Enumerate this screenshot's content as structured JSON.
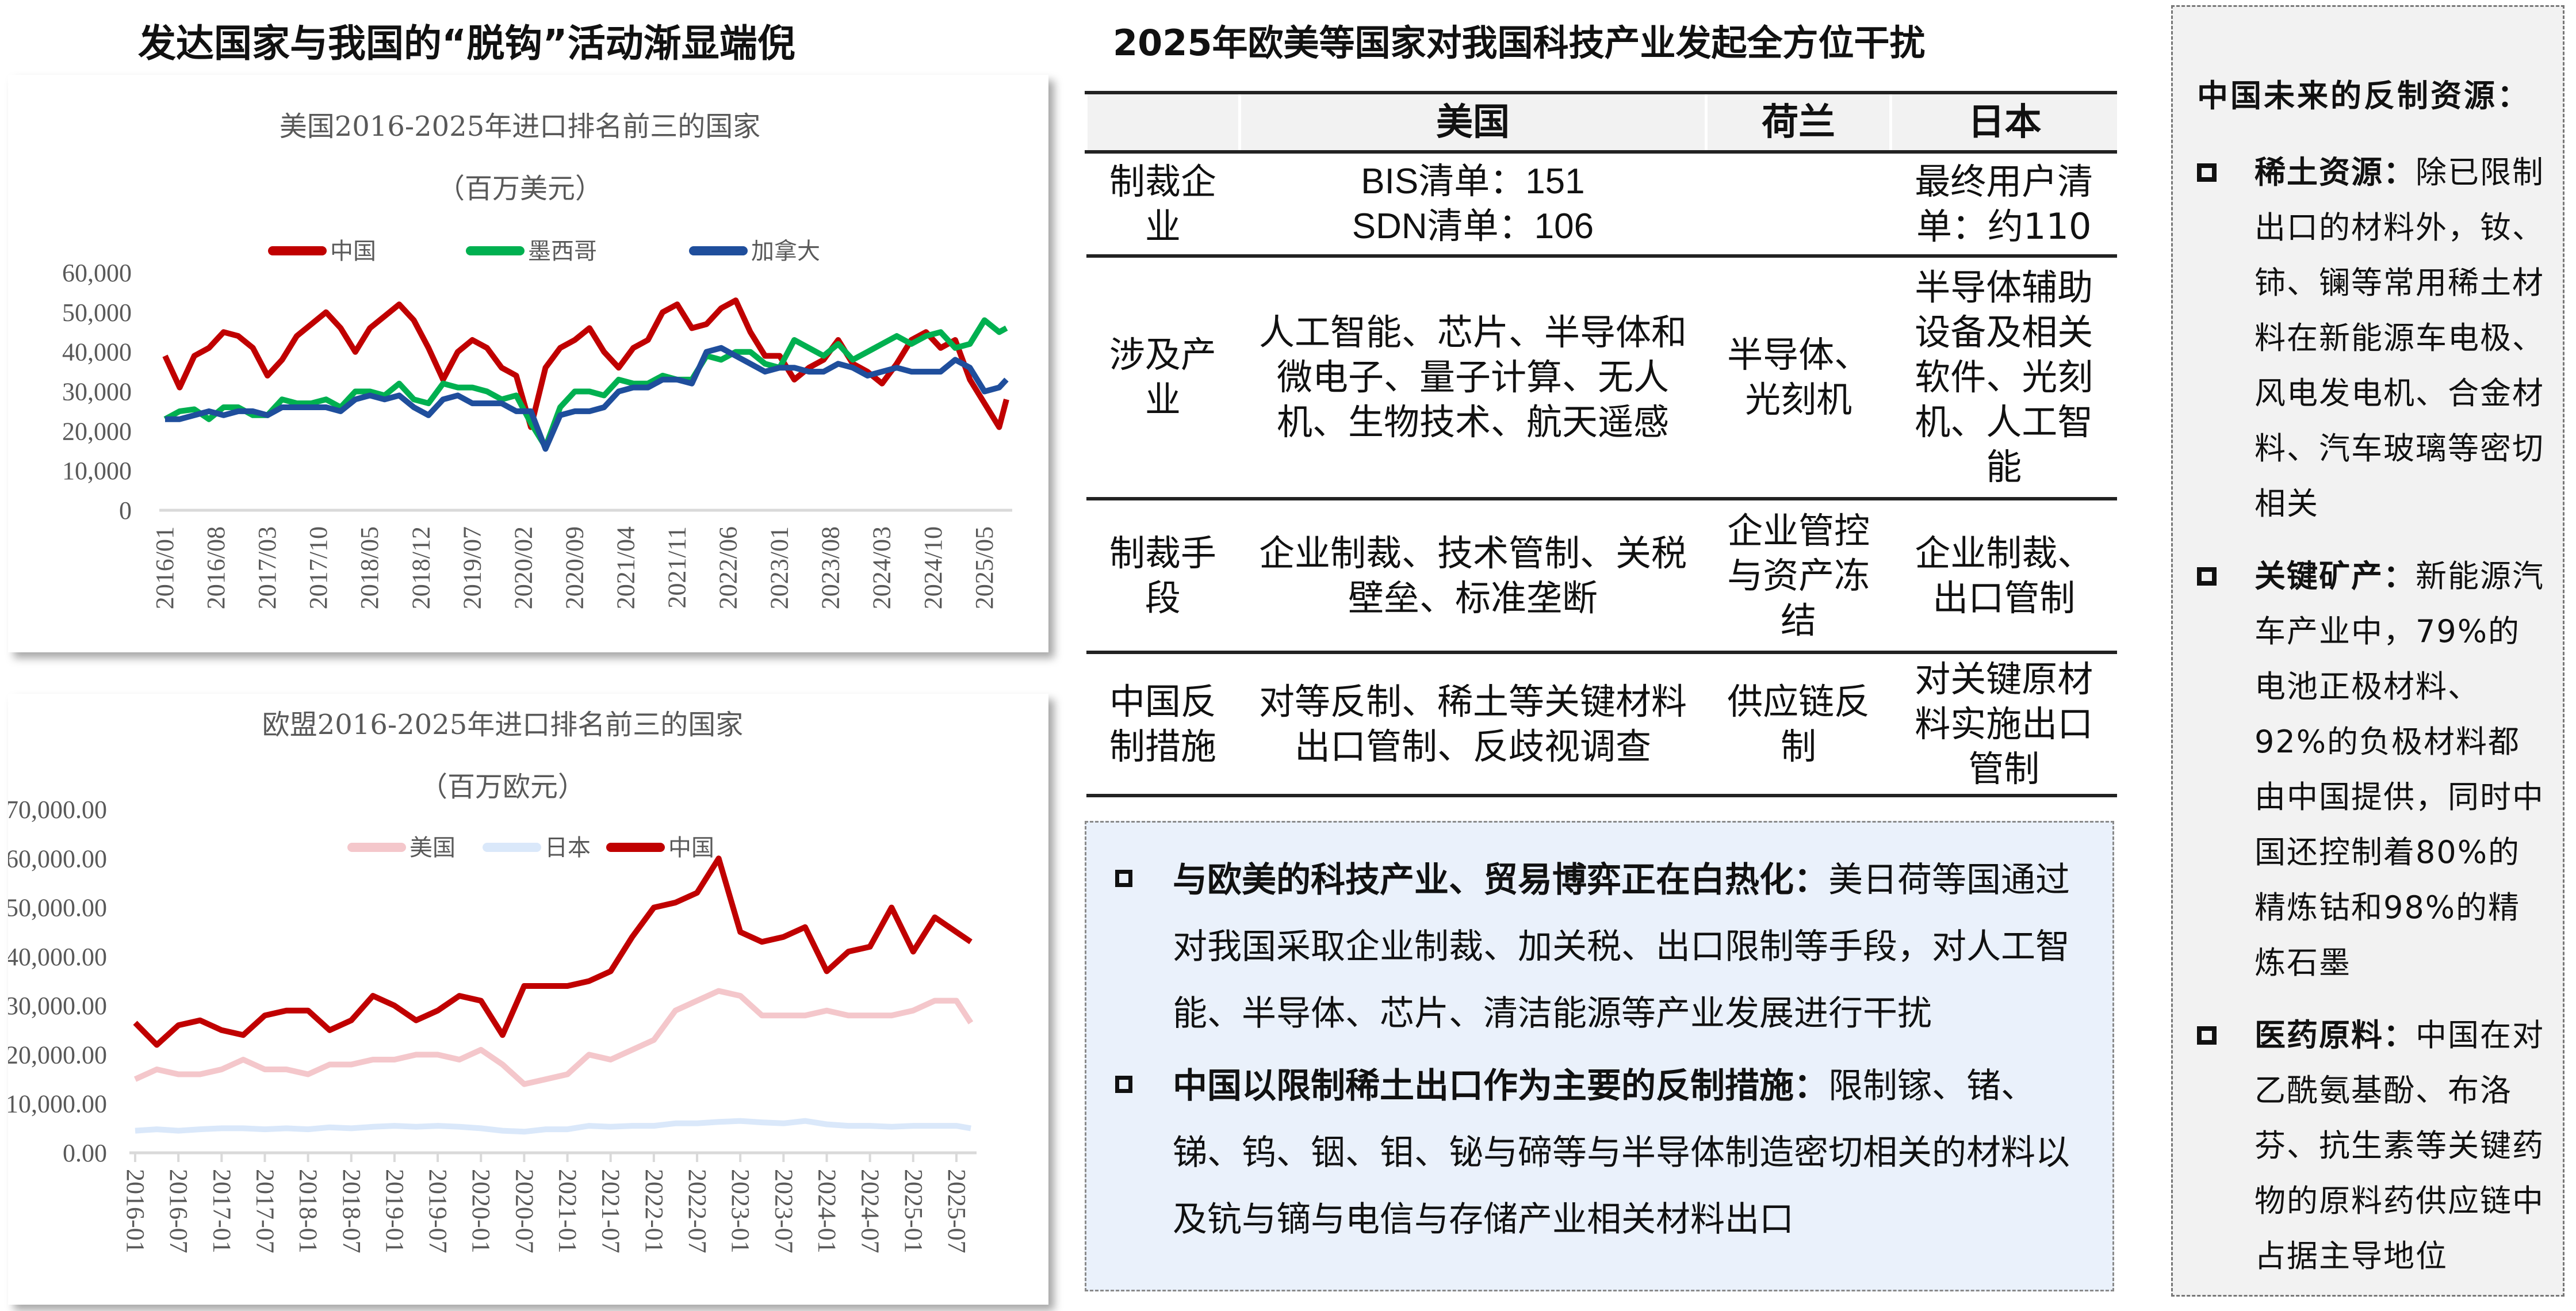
{
  "left_title": "发达国家与我国的“脱钩”活动渐显端倪",
  "middle_title": "2025年欧美等国家对我国科技产业发起全方位干扰",
  "chart_data": [
    {
      "type": "line",
      "title": "美国2016-2025年进口排名前三的国家",
      "subtitle": "（百万美元）",
      "ylim": [
        0,
        60000
      ],
      "y_ticks": [
        "60,000",
        "50,000",
        "40,000",
        "30,000",
        "20,000",
        "10,000",
        "0"
      ],
      "y_tick_values": [
        60000,
        50000,
        40000,
        30000,
        20000,
        10000,
        0
      ],
      "x_tick_labels": [
        "2016/01",
        "2016/08",
        "2017/03",
        "2017/10",
        "2018/05",
        "2018/12",
        "2019/07",
        "2020/02",
        "2020/09",
        "2021/04",
        "2021/11",
        "2022/06",
        "2023/01",
        "2023/08",
        "2024/03",
        "2024/10",
        "2025/05"
      ],
      "x_range": [
        "2016/01",
        "2025/08"
      ],
      "x": [
        "2016/01",
        "2016/03",
        "2016/05",
        "2016/07",
        "2016/09",
        "2016/11",
        "2017/01",
        "2017/03",
        "2017/05",
        "2017/07",
        "2017/09",
        "2017/11",
        "2018/01",
        "2018/03",
        "2018/05",
        "2018/07",
        "2018/09",
        "2018/11",
        "2019/01",
        "2019/03",
        "2019/05",
        "2019/07",
        "2019/09",
        "2019/11",
        "2020/01",
        "2020/03",
        "2020/05",
        "2020/07",
        "2020/09",
        "2020/11",
        "2021/01",
        "2021/03",
        "2021/05",
        "2021/07",
        "2021/09",
        "2021/11",
        "2022/01",
        "2022/03",
        "2022/05",
        "2022/07",
        "2022/09",
        "2022/11",
        "2023/01",
        "2023/03",
        "2023/05",
        "2023/07",
        "2023/09",
        "2023/11",
        "2024/01",
        "2024/03",
        "2024/05",
        "2024/07",
        "2024/09",
        "2024/11",
        "2025/01",
        "2025/03",
        "2025/05",
        "2025/07",
        "2025/08"
      ],
      "legend_position": "top",
      "grid": false,
      "series": [
        {
          "name": "中国",
          "color": "#c00000",
          "values": [
            39000,
            31000,
            39000,
            41000,
            45000,
            44000,
            41000,
            34000,
            38000,
            44000,
            47000,
            50000,
            46000,
            40000,
            46000,
            49000,
            52000,
            48000,
            41000,
            33000,
            40000,
            43000,
            41000,
            36000,
            34000,
            21000,
            36000,
            41000,
            43000,
            46000,
            40000,
            36000,
            41000,
            43000,
            50000,
            52000,
            46000,
            47000,
            51000,
            53000,
            45000,
            39000,
            39000,
            33000,
            36000,
            38000,
            43000,
            37000,
            35000,
            32000,
            37000,
            43000,
            45000,
            41000,
            43000,
            33000,
            27000,
            21000,
            28000
          ]
        },
        {
          "name": "墨西哥",
          "color": "#00b050",
          "values": [
            23000,
            25000,
            25500,
            23000,
            26000,
            26000,
            24000,
            24000,
            28000,
            27000,
            27000,
            28000,
            26000,
            30000,
            30000,
            29000,
            32000,
            28000,
            27000,
            32000,
            31000,
            31000,
            30000,
            28000,
            29000,
            22000,
            16000,
            26000,
            30000,
            30000,
            29000,
            33000,
            32000,
            32000,
            34000,
            33000,
            33000,
            39000,
            38000,
            40000,
            40000,
            37000,
            36000,
            43000,
            41000,
            39000,
            42000,
            38000,
            40000,
            42000,
            44000,
            42000,
            44000,
            45000,
            41000,
            42000,
            48000,
            45000,
            46000
          ]
        },
        {
          "name": "加拿大",
          "color": "#1f4e9c",
          "values": [
            23000,
            23000,
            24000,
            25000,
            24000,
            25000,
            25000,
            24000,
            26000,
            26000,
            26000,
            26000,
            25000,
            28000,
            29000,
            28000,
            29000,
            26000,
            24000,
            28000,
            29000,
            27000,
            27000,
            27000,
            25000,
            25000,
            15500,
            24000,
            25000,
            25000,
            26000,
            30000,
            31000,
            31000,
            33000,
            33000,
            32000,
            40000,
            41000,
            39000,
            37000,
            35000,
            36000,
            36000,
            35000,
            35000,
            37000,
            36000,
            34000,
            35000,
            36000,
            35000,
            35000,
            35000,
            38000,
            36000,
            30000,
            31000,
            33000
          ]
        }
      ]
    },
    {
      "type": "line",
      "title": "欧盟2016-2025年进口排名前三的国家",
      "subtitle": "（百万欧元）",
      "ylim": [
        0,
        70000
      ],
      "y_ticks": [
        "70,000.00",
        "60,000.00",
        "50,000.00",
        "40,000.00",
        "30,000.00",
        "20,000.00",
        "10,000.00",
        "0.00"
      ],
      "y_tick_values": [
        70000,
        60000,
        50000,
        40000,
        30000,
        20000,
        10000,
        0
      ],
      "x_tick_labels": [
        "2016-01",
        "2016-07",
        "2017-01",
        "2017-07",
        "2018-01",
        "2018-07",
        "2019-01",
        "2019-07",
        "2020-01",
        "2020-07",
        "2021-01",
        "2021-07",
        "2022-01",
        "2022-07",
        "2023-01",
        "2023-07",
        "2024-01",
        "2024-07",
        "2025-01",
        "2025-07"
      ],
      "x_range": [
        "2016-01",
        "2025-09"
      ],
      "x": [
        "2016-01",
        "2016-04",
        "2016-07",
        "2016-10",
        "2017-01",
        "2017-04",
        "2017-07",
        "2017-10",
        "2018-01",
        "2018-04",
        "2018-07",
        "2018-10",
        "2019-01",
        "2019-04",
        "2019-07",
        "2019-10",
        "2020-01",
        "2020-04",
        "2020-07",
        "2020-10",
        "2021-01",
        "2021-04",
        "2021-07",
        "2021-10",
        "2022-01",
        "2022-04",
        "2022-07",
        "2022-10",
        "2023-01",
        "2023-04",
        "2023-07",
        "2023-10",
        "2024-01",
        "2024-04",
        "2024-07",
        "2024-10",
        "2025-01",
        "2025-04",
        "2025-07",
        "2025-09"
      ],
      "legend_position": "top",
      "grid": false,
      "series": [
        {
          "name": "美国",
          "color": "#f4c7cb",
          "values": [
            15000,
            17000,
            16000,
            16000,
            17000,
            19000,
            17000,
            17000,
            16000,
            18000,
            18000,
            19000,
            19000,
            20000,
            20000,
            19000,
            21000,
            18000,
            14000,
            15000,
            16000,
            20000,
            19000,
            21000,
            23000,
            29000,
            31000,
            33000,
            32000,
            28000,
            28000,
            28000,
            29000,
            28000,
            28000,
            28000,
            29000,
            31000,
            31000,
            26500
          ]
        },
        {
          "name": "日本",
          "color": "#dae8fa",
          "values": [
            4500,
            4800,
            4500,
            4800,
            5000,
            5000,
            4800,
            5000,
            4800,
            5200,
            5000,
            5300,
            5500,
            5300,
            5500,
            5300,
            5000,
            4500,
            4300,
            4800,
            4800,
            5500,
            5300,
            5500,
            5500,
            6000,
            6000,
            6300,
            6500,
            6200,
            6000,
            6500,
            5800,
            5500,
            5500,
            5300,
            5500,
            5500,
            5500,
            5000
          ]
        },
        {
          "name": "中国",
          "color": "#c00000",
          "values": [
            26500,
            22000,
            26000,
            27000,
            25000,
            24000,
            28000,
            29000,
            29000,
            25000,
            27000,
            32000,
            30000,
            27000,
            29000,
            32000,
            31000,
            24000,
            34000,
            34000,
            34000,
            35000,
            37000,
            44000,
            50000,
            51000,
            53000,
            60000,
            45000,
            43000,
            44000,
            46000,
            37000,
            41000,
            42000,
            50000,
            41000,
            48000,
            45000,
            43000
          ]
        }
      ]
    }
  ],
  "table": {
    "headers": [
      "",
      "美国",
      "荷兰",
      "日本"
    ],
    "rows": [
      {
        "label": "制裁企业",
        "us": "BIS清单：151\nSDN清单：106",
        "nl": "",
        "jp": "最终用户清单：约110"
      },
      {
        "label": "涉及产业",
        "us": "人工智能、芯片、半导体和微电子、量子计算、无人机、生物技术、航天遥感",
        "nl": "半导体、光刻机",
        "jp": "半导体辅助设备及相关软件、光刻机、人工智能"
      },
      {
        "label": "制裁手段",
        "us": "企业制裁、技术管制、关税壁垒、标准垄断",
        "nl": "企业管控与资产冻结",
        "jp": "企业制裁、出口管制"
      },
      {
        "label": "中国反制措施",
        "us": "对等反制、稀土等关键材料出口管制、反歧视调查",
        "nl": "供应链反制",
        "jp": "对关键原材料实施出口管制"
      }
    ]
  },
  "summary": [
    {
      "bold": "与欧美的科技产业、贸易博弈正在白热化：",
      "text": "美日荷等国通过对我国采取企业制裁、加关税、出口限制等手段，对人工智能、半导体、芯片、清洁能源等产业发展进行干扰"
    },
    {
      "bold": "中国以限制稀土出口作为主要的反制措施：",
      "text": "限制镓、锗、锑、钨、铟、钼、铋与碲等与半导体制造密切相关的材料以及钪与镝与电信与存储产业相关材料出口"
    }
  ],
  "right_panel": {
    "title": "中国未来的反制资源：",
    "items": [
      {
        "bold": "稀土资源：",
        "text": "除已限制出口的材料外，钕、铈、镧等常用稀土材料在新能源车电极、风电发电机、合金材料、汽车玻璃等密切相关"
      },
      {
        "bold": "关键矿产：",
        "text": "新能源汽车产业中，79%的电池正极材料、92%的负极材料都由中国提供，同时中国还控制着80%的精炼钴和98%的精炼石墨"
      },
      {
        "bold": "医药原料：",
        "text": "中国在对乙酰氨基酚、布洛芬、抗生素等关键药物的原料药供应链中占据主导地位"
      }
    ]
  }
}
